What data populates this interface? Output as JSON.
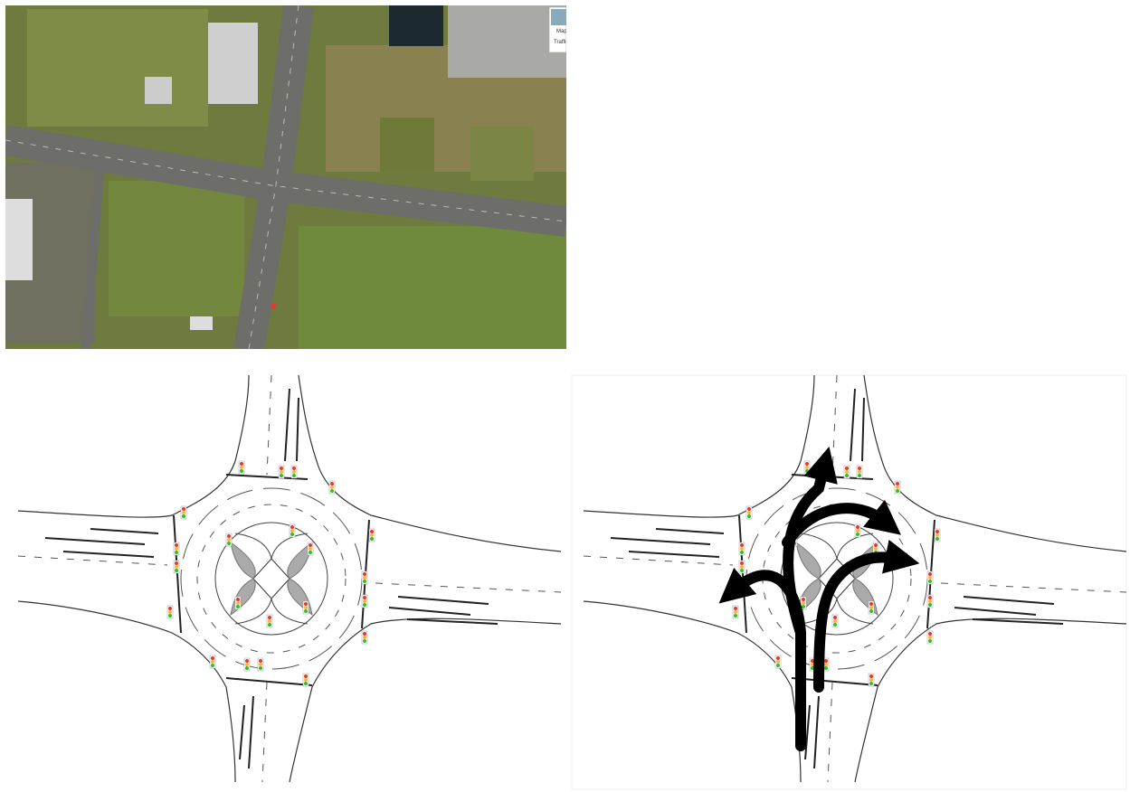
{
  "map_controls": {
    "map": "Map",
    "traffic": "Traffic"
  }
}
